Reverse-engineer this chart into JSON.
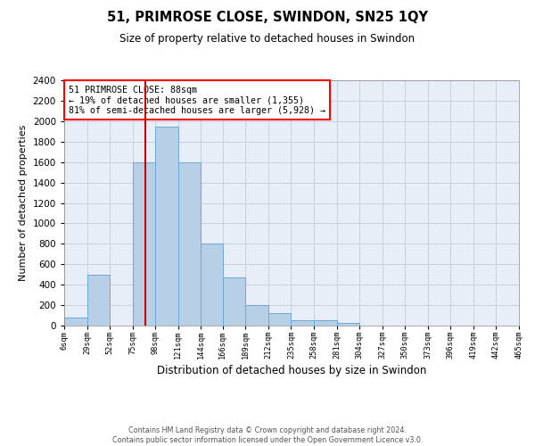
{
  "title": "51, PRIMROSE CLOSE, SWINDON, SN25 1QY",
  "subtitle": "Size of property relative to detached houses in Swindon",
  "xlabel": "Distribution of detached houses by size in Swindon",
  "ylabel": "Number of detached properties",
  "footer_line1": "Contains HM Land Registry data © Crown copyright and database right 2024.",
  "footer_line2": "Contains public sector information licensed under the Open Government Licence v3.0.",
  "annotation_line1": "51 PRIMROSE CLOSE: 88sqm",
  "annotation_line2": "← 19% of detached houses are smaller (1,355)",
  "annotation_line3": "81% of semi-detached houses are larger (5,928) →",
  "property_size": 88,
  "bar_color": "#b8cfe8",
  "bar_edge_color": "#6aaad4",
  "red_line_color": "#cc0000",
  "background_color": "#e8eef8",
  "bin_edges": [
    6,
    29,
    52,
    75,
    98,
    121,
    144,
    166,
    189,
    212,
    235,
    258,
    281,
    304,
    327,
    350,
    373,
    396,
    419,
    442,
    465
  ],
  "bar_heights": [
    75,
    500,
    0,
    1600,
    1950,
    1600,
    800,
    475,
    200,
    125,
    50,
    50,
    25,
    0,
    0,
    0,
    0,
    0,
    0,
    0
  ],
  "ylim": [
    0,
    2400
  ],
  "yticks": [
    0,
    200,
    400,
    600,
    800,
    1000,
    1200,
    1400,
    1600,
    1800,
    2000,
    2200,
    2400
  ],
  "grid_color": "#c8d0dc"
}
